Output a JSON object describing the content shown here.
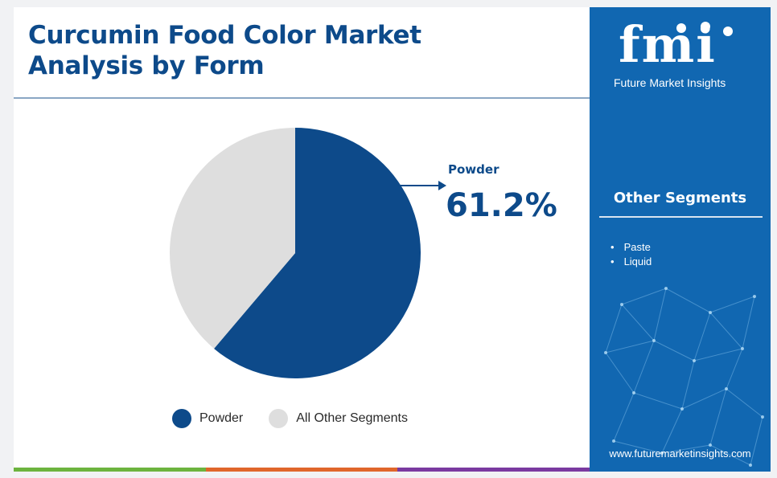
{
  "title": "Curcumin Food Color Market Analysis by Form",
  "callout": {
    "label": "Powder",
    "value": "61.2%"
  },
  "colors": {
    "primary": "#0d4a8a",
    "other": "#dedede",
    "panel": "#1167b1",
    "bottom_bar": [
      "#6cb33e",
      "#e0662b",
      "#7a3aa0"
    ]
  },
  "chart_data": {
    "type": "pie",
    "title": "Curcumin Food Color Market Analysis by Form",
    "slices": [
      {
        "label": "Powder",
        "value": 61.2,
        "color": "#0d4a8a"
      },
      {
        "label": "All Other Segments",
        "value": 38.8,
        "color": "#dedede"
      }
    ],
    "legend_position": "bottom"
  },
  "legend": [
    {
      "label": "Powder",
      "color": "#0d4a8a"
    },
    {
      "label": "All Other Segments",
      "color": "#dedede"
    }
  ],
  "sidebar": {
    "logo_text": "fmi",
    "logo_subtitle": "Future Market Insights",
    "other_title": "Other Segments",
    "other_items": [
      "Paste",
      "Liquid"
    ],
    "website": "www.futuremarketinsights.com"
  }
}
